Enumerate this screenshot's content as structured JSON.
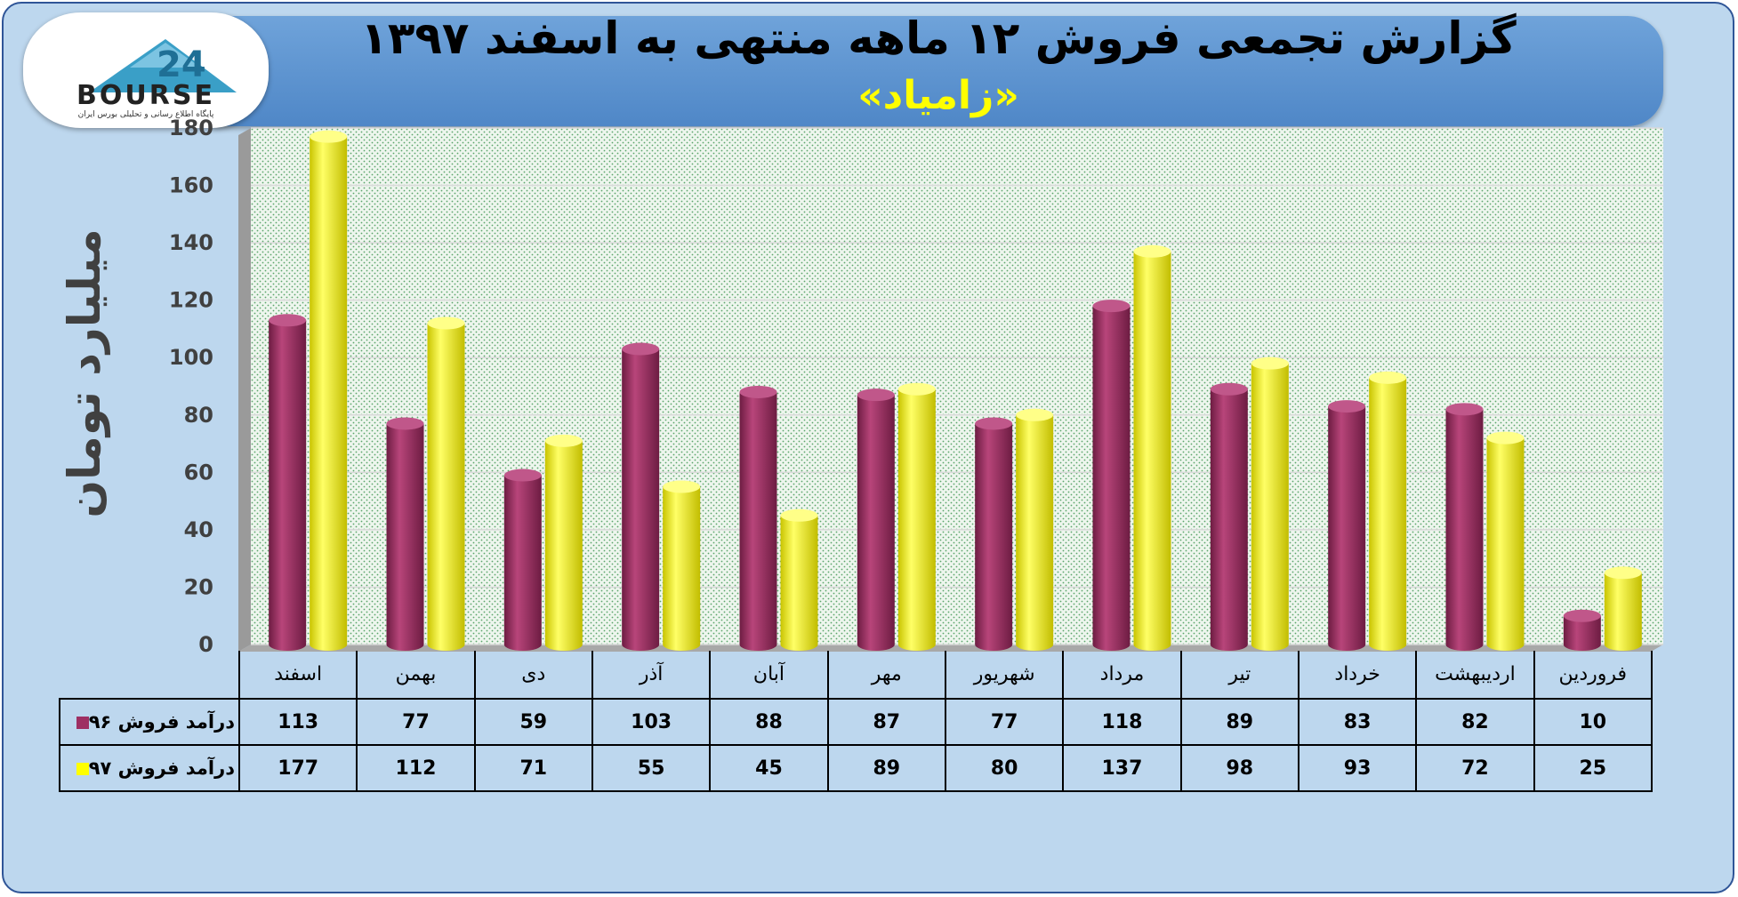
{
  "header": {
    "title": "گزارش تجمعی فروش ۱۲ ماهه منتهی به اسفند ۱۳۹۷",
    "subtitle": "«زامیاد»"
  },
  "logo": {
    "text": "BOURSE",
    "tagline": "پایگاه اطلاع رسانی و تحلیلی بورس ایران"
  },
  "chart_data": {
    "type": "bar",
    "ylabel": "میلیارد تومان",
    "ylim": [
      0,
      180
    ],
    "yticks": [
      "0",
      "20",
      "40",
      "60",
      "80",
      "100",
      "120",
      "140",
      "160",
      "180"
    ],
    "grid": true,
    "categories": [
      "فروردین",
      "اردیبهشت",
      "خرداد",
      "تیر",
      "مرداد",
      "شهریور",
      "مهر",
      "آبان",
      "آذر",
      "دی",
      "بهمن",
      "اسفند"
    ],
    "series": [
      {
        "name": "درآمد فروش ۹۶",
        "color": "#9e2f63",
        "values": [
          10,
          82,
          83,
          89,
          118,
          77,
          87,
          88,
          103,
          59,
          77,
          113
        ]
      },
      {
        "name": "درآمد فروش ۹۷",
        "color": "#ffff00",
        "values": [
          25,
          72,
          93,
          98,
          137,
          80,
          89,
          45,
          55,
          71,
          112,
          177
        ]
      }
    ]
  }
}
